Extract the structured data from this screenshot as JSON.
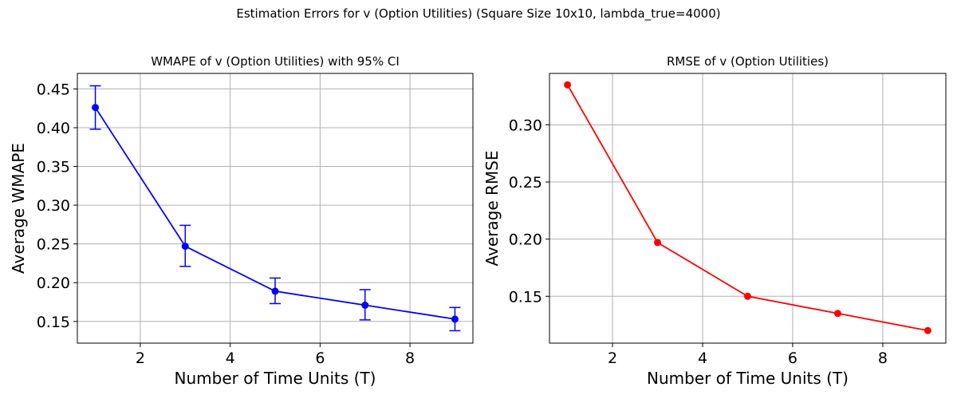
{
  "figure": {
    "suptitle": "Estimation Errors for v (Option Utilities) (Square Size 10x10, lambda_true=4000)"
  },
  "chart_data": [
    {
      "type": "line",
      "title": "WMAPE of v (Option Utilities) with 95% CI",
      "xlabel": "Number of Time Units (T)",
      "ylabel": "Average WMAPE",
      "x": [
        1,
        3,
        5,
        7,
        9
      ],
      "series": [
        {
          "values": [
            0.426,
            0.247,
            0.189,
            0.171,
            0.153
          ],
          "ci_lower": [
            0.398,
            0.221,
            0.173,
            0.152,
            0.138
          ],
          "ci_upper": [
            0.454,
            0.274,
            0.206,
            0.191,
            0.168
          ],
          "color": "#0000ff"
        }
      ],
      "xlim": [
        0.6,
        9.4
      ],
      "ylim": [
        0.122,
        0.47
      ],
      "xticks": [
        2,
        4,
        6,
        8
      ],
      "yticks": [
        0.15,
        0.2,
        0.25,
        0.3,
        0.35,
        0.4,
        0.45
      ],
      "xtick_labels": [
        "2",
        "4",
        "6",
        "8"
      ],
      "ytick_labels": [
        "0.15",
        "0.20",
        "0.25",
        "0.30",
        "0.35",
        "0.40",
        "0.45"
      ],
      "grid": true
    },
    {
      "type": "line",
      "title": "RMSE of v (Option Utilities)",
      "xlabel": "Number of Time Units (T)",
      "ylabel": "Average RMSE",
      "x": [
        1,
        3,
        5,
        7,
        9
      ],
      "series": [
        {
          "values": [
            0.335,
            0.197,
            0.15,
            0.135,
            0.12
          ],
          "color": "#ff0000"
        }
      ],
      "xlim": [
        0.6,
        9.4
      ],
      "ylim": [
        0.109,
        0.345
      ],
      "xticks": [
        2,
        4,
        6,
        8
      ],
      "yticks": [
        0.15,
        0.2,
        0.25,
        0.3
      ],
      "xtick_labels": [
        "2",
        "4",
        "6",
        "8"
      ],
      "ytick_labels": [
        "0.15",
        "0.20",
        "0.25",
        "0.30"
      ],
      "grid": true
    }
  ]
}
